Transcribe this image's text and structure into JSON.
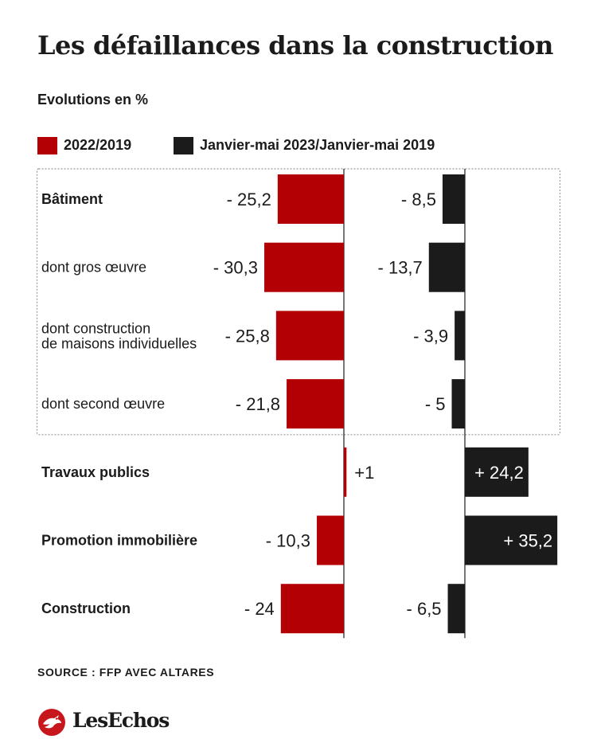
{
  "title": "Les défaillances dans la construction",
  "subtitle": "Evolutions en %",
  "source": "SOURCE : FFP AVEC ALTARES",
  "logo": {
    "text": "LesEchos",
    "icon": "les-echos-bird-icon",
    "color": "#c8161d"
  },
  "colors": {
    "series1": "#b30005",
    "series2": "#1b1b1b"
  },
  "chart_data": {
    "type": "bar",
    "orientation": "horizontal",
    "title": "Les défaillances dans la construction",
    "subtitle": "Evolutions en %",
    "categories": [
      "Bâtiment",
      "dont gros œuvre",
      "dont construction\nde maisons individuelles",
      "dont second œuvre",
      "Travaux publics",
      "Promotion immobilière",
      "Construction"
    ],
    "category_bold": [
      true,
      false,
      false,
      false,
      true,
      true,
      true
    ],
    "boxed_group": [
      0,
      3
    ],
    "series": [
      {
        "name": "2022/2019",
        "color": "#b30005",
        "values": [
          -25.2,
          -30.3,
          -25.8,
          -21.8,
          1,
          -10.3,
          -24
        ],
        "labels": [
          "- 25,2",
          "- 30,3",
          "- 25,8",
          "- 21,8",
          "+1",
          "- 10,3",
          "- 24"
        ]
      },
      {
        "name": "Janvier-mai 2023/Janvier-mai 2019",
        "color": "#1b1b1b",
        "values": [
          -8.5,
          -13.7,
          -3.9,
          -5,
          24.2,
          35.2,
          -6.5
        ],
        "labels": [
          "- 8,5",
          "- 13,7",
          "- 3,9",
          "- 5",
          "+  24,2",
          "+ 35,2",
          "- 6,5"
        ]
      }
    ],
    "legend_position": "top-left",
    "grid": false
  }
}
